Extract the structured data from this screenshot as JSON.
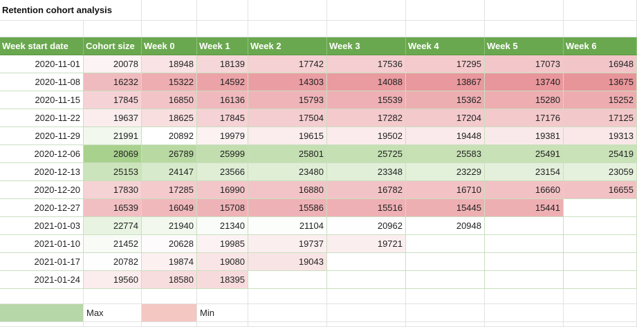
{
  "sheet": {
    "title": "Retention cohort analysis",
    "headers": [
      "Week start date",
      "Cohort size",
      "Week 0",
      "Week 1",
      "Week 2",
      "Week 3",
      "Week 4",
      "Week 5",
      "Week 6"
    ],
    "rows": [
      [
        "2020-11-01",
        "20078",
        "18948",
        "18139",
        "17742",
        "17536",
        "17295",
        "17073",
        "16948"
      ],
      [
        "2020-11-08",
        "16232",
        "15322",
        "14592",
        "14303",
        "14088",
        "13867",
        "13740",
        "13675"
      ],
      [
        "2020-11-15",
        "17845",
        "16850",
        "16136",
        "15793",
        "15539",
        "15362",
        "15280",
        "15252"
      ],
      [
        "2020-11-22",
        "19637",
        "18625",
        "17845",
        "17504",
        "17282",
        "17204",
        "17176",
        "17125"
      ],
      [
        "2020-11-29",
        "21991",
        "20892",
        "19979",
        "19615",
        "19502",
        "19448",
        "19381",
        "19313"
      ],
      [
        "2020-12-06",
        "28069",
        "26789",
        "25999",
        "25801",
        "25725",
        "25583",
        "25491",
        "25419"
      ],
      [
        "2020-12-13",
        "25153",
        "24147",
        "23566",
        "23480",
        "23348",
        "23229",
        "23154",
        "23059"
      ],
      [
        "2020-12-20",
        "17830",
        "17285",
        "16990",
        "16880",
        "16782",
        "16710",
        "16660",
        "16655"
      ],
      [
        "2020-12-27",
        "16539",
        "16049",
        "15708",
        "15586",
        "15516",
        "15445",
        "15441",
        ""
      ],
      [
        "2021-01-03",
        "22774",
        "21940",
        "21340",
        "21104",
        "20962",
        "20948",
        "",
        ""
      ],
      [
        "2021-01-10",
        "21452",
        "20628",
        "19985",
        "19737",
        "19721",
        "",
        "",
        ""
      ],
      [
        "2021-01-17",
        "20782",
        "19874",
        "19080",
        "19043",
        "",
        "",
        "",
        ""
      ],
      [
        "2021-01-24",
        "19560",
        "18580",
        "18395",
        "",
        "",
        "",
        "",
        ""
      ]
    ]
  },
  "legend": {
    "max_label": "Max",
    "min_label": "Min",
    "max_color": "#b6d7a8",
    "min_color": "#f4c7c3"
  },
  "colors": {
    "header_bg": "#6aa84f",
    "header_text": "#ffffff",
    "scale_min": "#e8959a",
    "scale_mid": "#ffffff",
    "scale_max": "#a9d18e"
  }
}
